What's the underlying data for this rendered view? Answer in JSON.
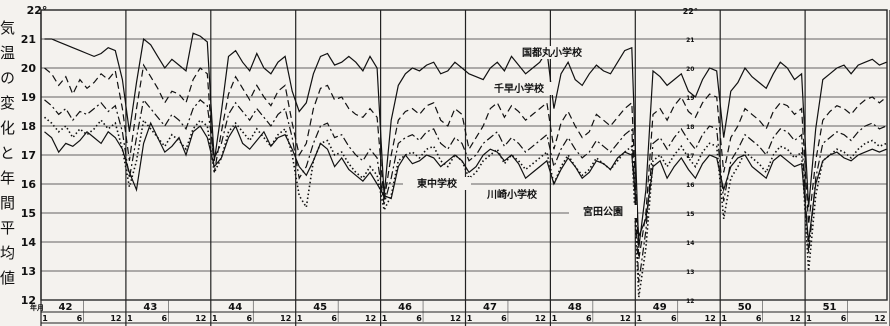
{
  "side_text": "気温の変化と年間平均値",
  "chart_data": {
    "type": "line",
    "title": "",
    "xlabel": "",
    "ylabel": "",
    "ylim": [
      12,
      22
    ],
    "y_unit_label_left": "22°",
    "y_unit_label_right": "22°",
    "yticks_left": [
      "12",
      "13",
      "14",
      "15",
      "16",
      "17",
      "18",
      "19",
      "20",
      "21"
    ],
    "yticks_right": [
      "12",
      "13",
      "14",
      "15",
      "16",
      "17",
      "18",
      "19",
      "20",
      "21"
    ],
    "year_axis_label": "年月",
    "years": [
      "42",
      "43",
      "44",
      "45",
      "46",
      "47",
      "48",
      "49",
      "50",
      "51"
    ],
    "month_ticks": [
      "1",
      "6",
      "12"
    ],
    "grid": true,
    "series": [
      {
        "name": "国都丸小学校",
        "style": "solid",
        "values": [
          21.0,
          21.0,
          20.9,
          20.8,
          20.7,
          20.6,
          20.5,
          20.4,
          20.5,
          20.7,
          20.6,
          19.6,
          17.8,
          19.5,
          21.0,
          20.8,
          20.4,
          20.0,
          20.3,
          20.1,
          19.9,
          21.2,
          21.1,
          20.9,
          16.8,
          18.5,
          20.4,
          20.6,
          20.2,
          19.9,
          20.5,
          20.0,
          19.8,
          20.2,
          20.4,
          19.2,
          18.5,
          18.8,
          19.8,
          20.4,
          20.5,
          20.1,
          20.2,
          20.4,
          20.2,
          19.9,
          20.4,
          20.0,
          15.6,
          18.2,
          19.4,
          19.8,
          20.0,
          19.9,
          20.1,
          20.2,
          19.8,
          19.9,
          20.2,
          20.0,
          19.8,
          19.7,
          19.6,
          20.0,
          20.2,
          19.9,
          20.4,
          20.1,
          19.8,
          20.0,
          20.2,
          20.6,
          18.6,
          19.8,
          20.2,
          19.6,
          19.4,
          19.8,
          20.1,
          19.9,
          19.8,
          20.2,
          20.6,
          20.7,
          13.8,
          15.8,
          19.9,
          19.7,
          19.4,
          19.6,
          19.8,
          19.2,
          19.0,
          19.6,
          20.0,
          19.9,
          17.6,
          19.2,
          19.5,
          20.0,
          19.7,
          19.5,
          19.3,
          19.8,
          20.2,
          20.0,
          19.6,
          19.8,
          15.2,
          17.9,
          19.6,
          19.8,
          20.0,
          20.1,
          19.8,
          20.1,
          20.2,
          20.3,
          20.1,
          20.2
        ]
      },
      {
        "name": "千早小学校",
        "style": "dashed",
        "values": [
          20.0,
          19.8,
          19.4,
          19.7,
          19.1,
          19.6,
          19.3,
          19.5,
          19.8,
          19.6,
          19.9,
          18.6,
          16.8,
          18.6,
          20.1,
          19.7,
          19.3,
          18.8,
          19.2,
          19.1,
          18.8,
          19.6,
          20.0,
          19.8,
          16.4,
          17.8,
          19.1,
          19.7,
          19.3,
          18.9,
          19.4,
          19.0,
          18.7,
          19.2,
          19.4,
          18.1,
          17.0,
          17.4,
          18.6,
          19.3,
          19.4,
          18.9,
          19.0,
          18.6,
          18.4,
          18.3,
          18.6,
          18.3,
          15.4,
          17.0,
          18.2,
          18.5,
          18.6,
          18.4,
          18.7,
          18.8,
          18.2,
          18.0,
          18.6,
          18.4,
          17.2,
          17.6,
          18.0,
          18.6,
          18.8,
          18.3,
          18.7,
          18.5,
          18.2,
          18.4,
          18.6,
          18.8,
          17.2,
          18.1,
          18.5,
          18.0,
          17.6,
          17.8,
          18.4,
          18.2,
          18.0,
          18.3,
          18.6,
          18.8,
          13.4,
          15.0,
          18.4,
          18.6,
          18.2,
          18.7,
          19.0,
          18.5,
          18.3,
          18.8,
          19.1,
          19.0,
          16.4,
          17.6,
          18.0,
          18.6,
          18.4,
          18.2,
          17.9,
          18.5,
          18.8,
          18.7,
          18.4,
          18.6,
          14.6,
          16.8,
          18.2,
          18.5,
          18.7,
          18.6,
          18.4,
          18.7,
          18.9,
          19.0,
          18.8,
          19.0
        ]
      },
      {
        "name": "東中学校",
        "style": "solid",
        "values": [
          17.8,
          17.6,
          17.1,
          17.4,
          17.3,
          17.5,
          17.8,
          17.6,
          17.4,
          17.8,
          17.6,
          17.2,
          16.4,
          15.8,
          17.4,
          18.1,
          17.6,
          17.1,
          17.3,
          17.6,
          17.0,
          17.8,
          18.0,
          17.6,
          16.6,
          16.9,
          17.6,
          18.0,
          17.4,
          17.2,
          17.5,
          17.8,
          17.3,
          17.6,
          17.7,
          17.2,
          16.6,
          16.3,
          16.8,
          17.4,
          17.2,
          16.6,
          16.9,
          16.5,
          16.3,
          16.1,
          16.4,
          16.0,
          15.6,
          15.5,
          16.6,
          17.0,
          16.7,
          16.8,
          17.0,
          16.9,
          16.6,
          16.8,
          17.0,
          16.8,
          16.4,
          16.6,
          17.0,
          17.2,
          17.1,
          16.8,
          17.0,
          16.7,
          16.2,
          16.4,
          16.6,
          16.8,
          16.0,
          16.5,
          16.9,
          16.6,
          16.2,
          16.4,
          16.8,
          16.7,
          16.5,
          16.9,
          17.1,
          17.0,
          14.2,
          14.8,
          16.6,
          16.8,
          16.2,
          16.6,
          16.9,
          16.5,
          16.2,
          16.7,
          17.0,
          16.9,
          15.8,
          16.6,
          16.9,
          17.0,
          16.6,
          16.4,
          16.2,
          16.8,
          17.0,
          16.8,
          16.6,
          16.7,
          14.0,
          16.0,
          16.8,
          17.0,
          17.1,
          16.9,
          16.8,
          17.0,
          17.1,
          17.2,
          17.1,
          17.2
        ]
      },
      {
        "name": "川崎小学校",
        "style": "dash-dot",
        "values": [
          18.9,
          18.7,
          18.4,
          18.6,
          18.2,
          18.5,
          18.4,
          18.6,
          18.8,
          18.5,
          18.7,
          17.8,
          16.2,
          17.6,
          18.9,
          18.6,
          18.3,
          18.0,
          18.4,
          18.2,
          17.9,
          18.6,
          18.9,
          18.7,
          16.9,
          17.4,
          18.4,
          18.8,
          18.5,
          18.2,
          18.6,
          18.3,
          18.0,
          18.4,
          18.6,
          17.6,
          16.2,
          16.6,
          17.4,
          18.0,
          18.1,
          17.6,
          17.7,
          17.3,
          17.0,
          16.8,
          17.2,
          16.9,
          15.3,
          16.2,
          17.4,
          17.6,
          17.7,
          17.5,
          17.8,
          17.9,
          17.4,
          17.2,
          17.6,
          17.4,
          16.8,
          17.0,
          17.4,
          17.6,
          17.8,
          17.3,
          17.6,
          17.4,
          17.1,
          17.3,
          17.5,
          17.7,
          16.6,
          17.2,
          17.6,
          17.2,
          16.9,
          17.1,
          17.5,
          17.3,
          17.1,
          17.4,
          17.7,
          17.9,
          12.6,
          14.4,
          17.4,
          17.6,
          17.2,
          17.6,
          17.9,
          17.5,
          17.2,
          17.7,
          18.0,
          17.9,
          15.4,
          16.8,
          17.2,
          17.7,
          17.5,
          17.3,
          17.0,
          17.6,
          17.9,
          17.8,
          17.5,
          17.7,
          13.6,
          16.2,
          17.4,
          17.6,
          17.8,
          17.7,
          17.5,
          17.8,
          18.0,
          18.1,
          17.9,
          18.0
        ]
      },
      {
        "name": "宮田公園",
        "style": "dotted",
        "values": [
          18.3,
          18.1,
          17.8,
          18.0,
          17.6,
          17.9,
          17.7,
          17.9,
          18.2,
          17.9,
          18.1,
          17.2,
          15.9,
          16.8,
          18.2,
          17.9,
          17.6,
          17.3,
          17.7,
          17.5,
          17.2,
          17.9,
          18.2,
          18.0,
          16.4,
          16.9,
          17.8,
          18.1,
          17.8,
          17.5,
          17.9,
          17.6,
          17.3,
          17.7,
          17.9,
          17.0,
          15.6,
          15.2,
          16.8,
          17.4,
          17.5,
          17.0,
          17.1,
          16.7,
          16.4,
          16.2,
          16.6,
          16.3,
          15.1,
          15.6,
          16.8,
          17.0,
          17.1,
          16.9,
          17.2,
          17.3,
          16.8,
          16.6,
          17.0,
          16.8,
          16.2,
          16.4,
          16.8,
          17.0,
          17.2,
          16.7,
          17.0,
          16.8,
          16.5,
          16.7,
          16.9,
          17.1,
          16.0,
          16.6,
          17.0,
          16.6,
          16.3,
          16.5,
          16.9,
          16.7,
          16.5,
          16.8,
          17.1,
          17.3,
          12.1,
          13.8,
          16.8,
          17.0,
          16.6,
          17.0,
          17.3,
          16.9,
          16.6,
          17.1,
          17.4,
          17.3,
          14.8,
          16.2,
          16.6,
          17.1,
          16.9,
          16.7,
          16.4,
          17.0,
          17.3,
          17.2,
          16.9,
          17.1,
          13.0,
          15.6,
          16.8,
          17.0,
          17.2,
          17.1,
          16.9,
          17.2,
          17.4,
          17.5,
          17.3,
          17.4
        ]
      }
    ]
  }
}
